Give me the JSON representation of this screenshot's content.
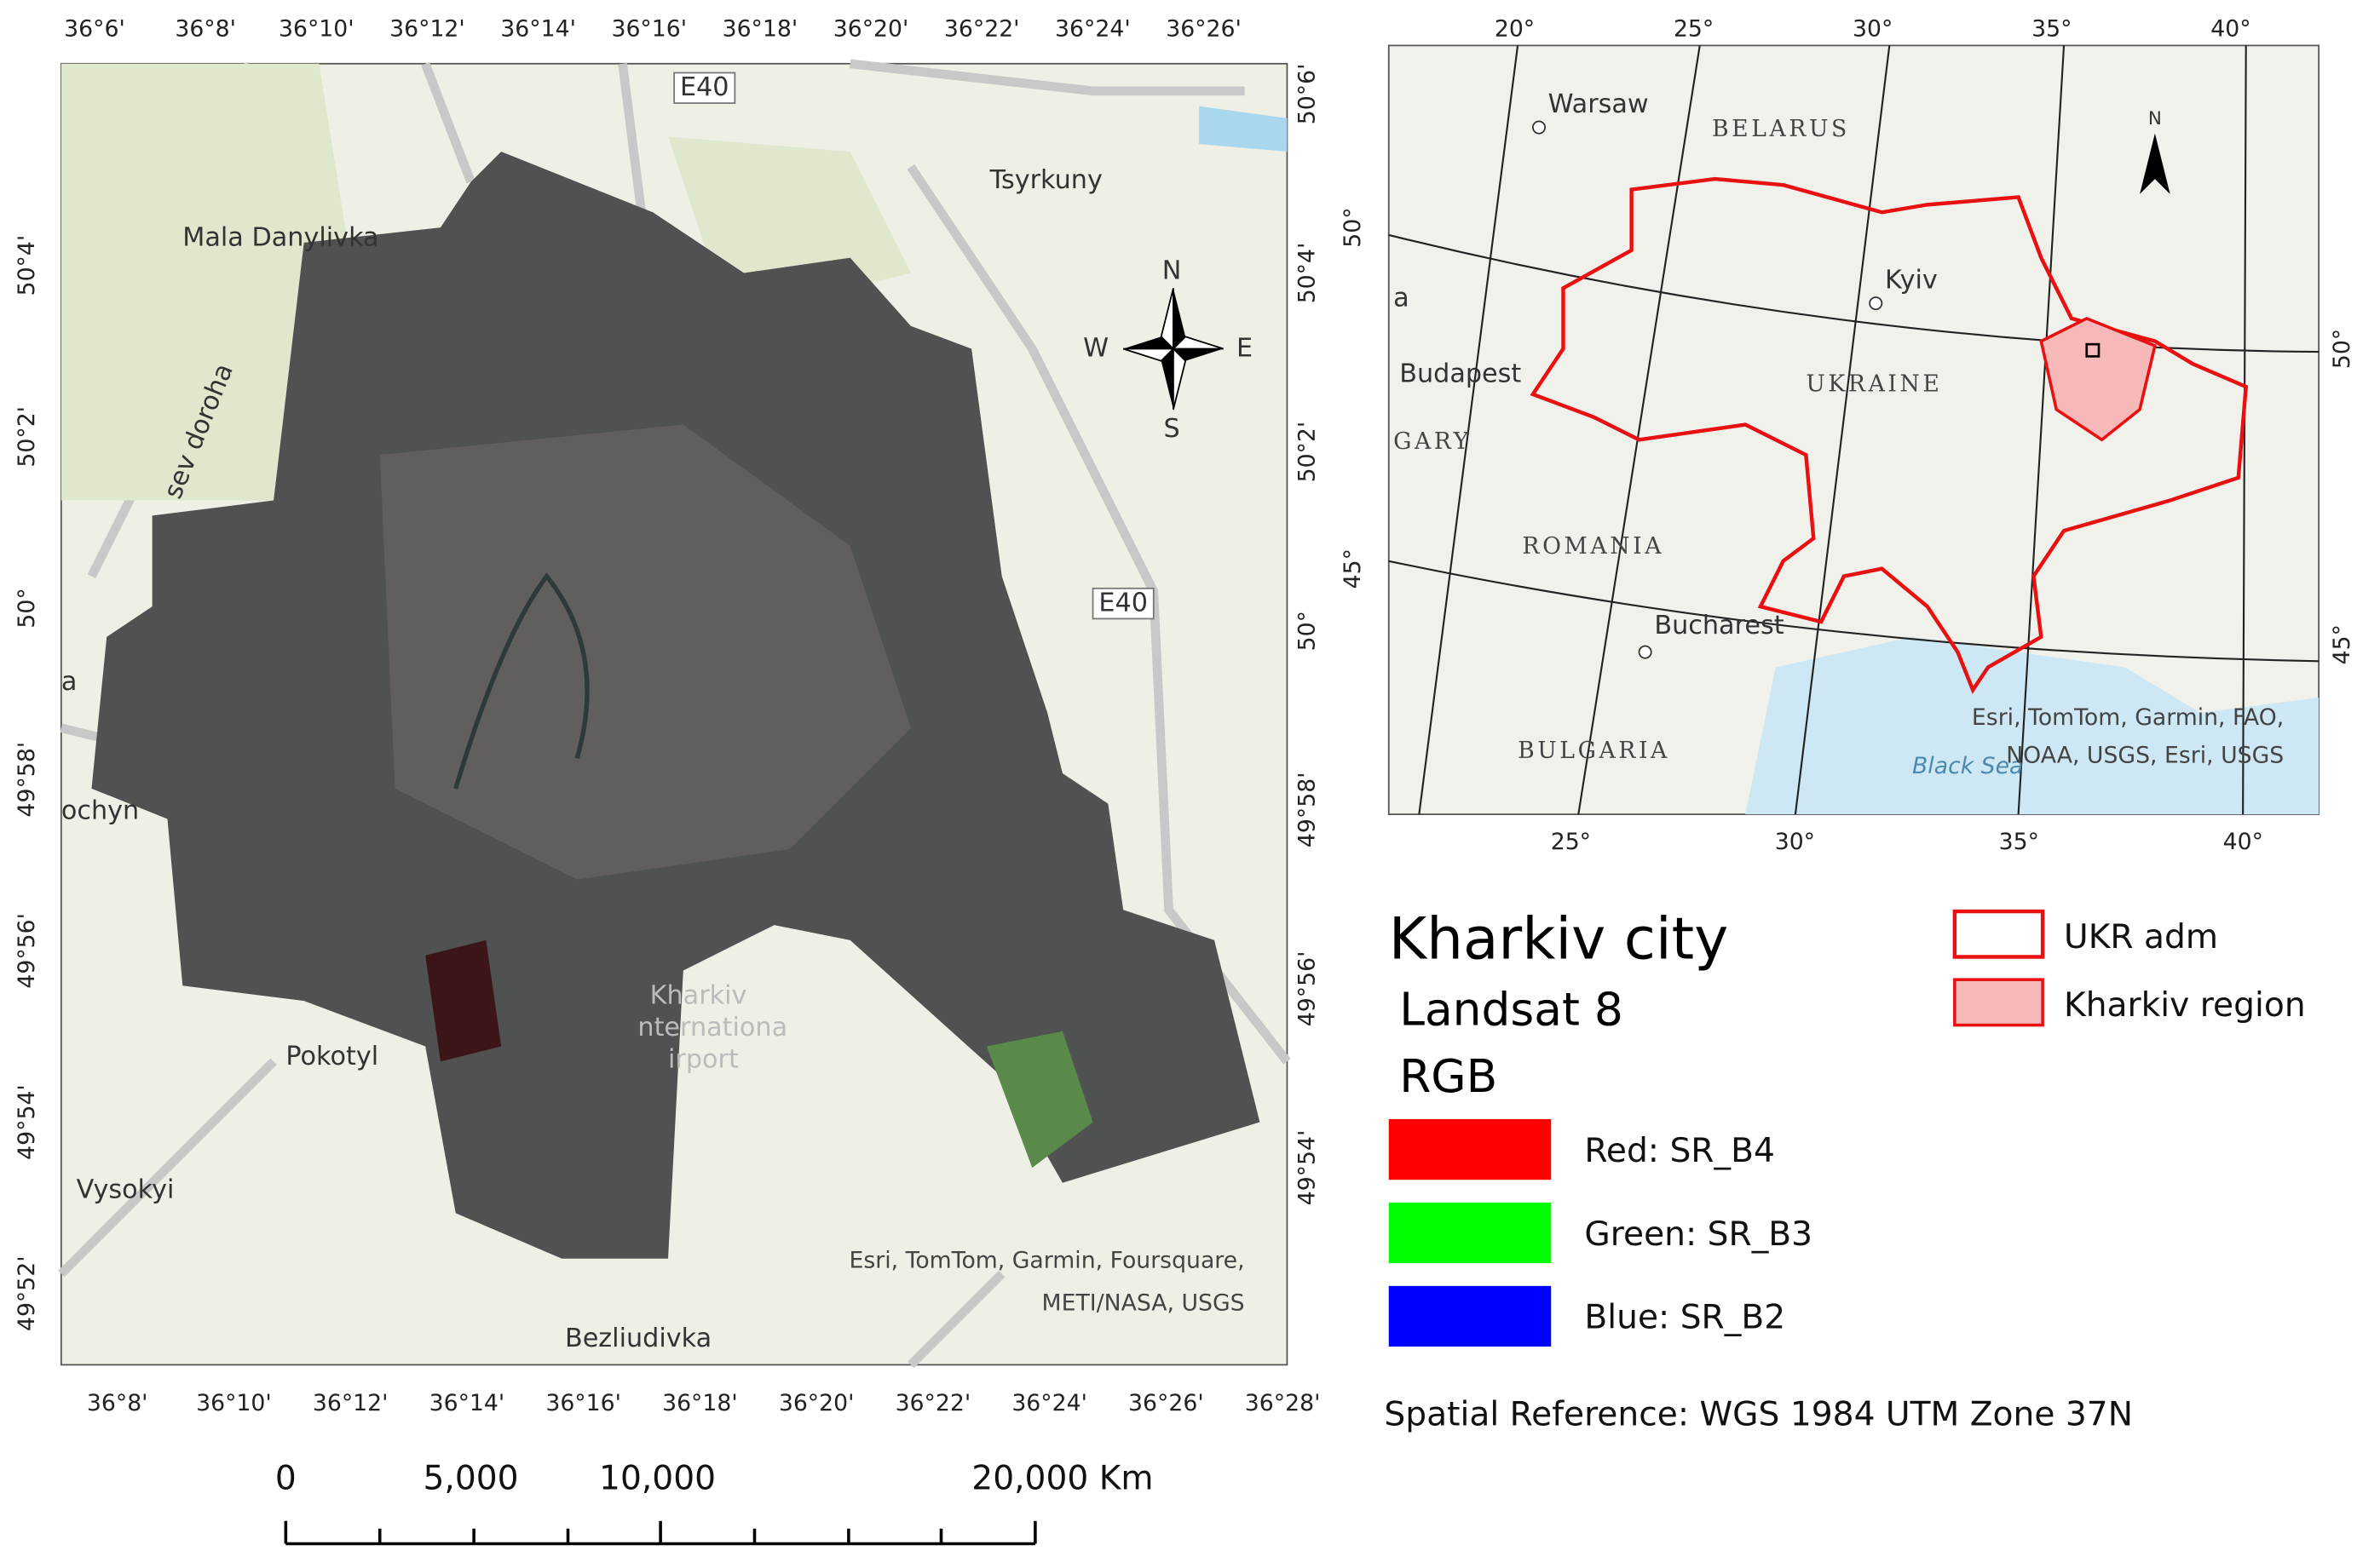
{
  "main_map": {
    "top_ticks": [
      "36°6'",
      "36°8'",
      "36°10'",
      "36°12'",
      "36°14'",
      "36°16'",
      "36°18'",
      "36°20'",
      "36°22'",
      "36°24'",
      "36°26'"
    ],
    "bottom_ticks": [
      "36°8'",
      "36°10'",
      "36°12'",
      "36°14'",
      "36°16'",
      "36°18'",
      "36°20'",
      "36°22'",
      "36°24'",
      "36°26'",
      "36°28'"
    ],
    "left_ticks": [
      "50°4'",
      "50°2'",
      "50°",
      "49°58'",
      "49°56'",
      "49°54'",
      "49°52'"
    ],
    "right_ticks": [
      "50°6'",
      "50°4'",
      "50°2'",
      "50°",
      "49°58'",
      "49°56'",
      "49°54'"
    ],
    "places": [
      "Mala Danylivka",
      "Tsyrkuny",
      "sev doroha",
      "a",
      "ochyn",
      "Kharkiv",
      "nternationa",
      "irport",
      "Pokotyl",
      "Vysokyi",
      "Bezliudivka"
    ],
    "roads": [
      "E40",
      "E40"
    ],
    "north_arrow": [
      "N",
      "W",
      "E",
      "S"
    ],
    "attribution": [
      "Esri, TomTom, Garmin, Foursquare,",
      "METI/NASA, USGS"
    ]
  },
  "inset_map": {
    "top_ticks": [
      "20°",
      "25°",
      "30°",
      "35°",
      "40°"
    ],
    "bottom_ticks": [
      "25°",
      "30°",
      "35°",
      "40°"
    ],
    "left_ticks": [
      "50°",
      "45°"
    ],
    "right_ticks": [
      "50°",
      "45°"
    ],
    "places": [
      "Warsaw",
      "BELARUS",
      "Kyiv",
      "UKRAINE",
      "a",
      "Budapest",
      "GARY",
      "ROMANIA",
      "Bucharest",
      "BULGARIA",
      "Black Sea"
    ],
    "north_arrow": "N",
    "attribution": [
      "Esri, TomTom, Garmin, FAO,",
      "NOAA, USGS, Esri, USGS"
    ]
  },
  "legend": {
    "title": "Kharkiv city",
    "subtitle": "Landsat 8",
    "composite": "RGB",
    "bands": [
      "Red: SR_B4",
      "Green: SR_B3",
      "Blue: SR_B2"
    ],
    "boundaries": [
      "UKR adm",
      "Kharkiv region"
    ]
  },
  "scale_bar": {
    "labels": [
      "0",
      "5,000",
      "10,000",
      "20,000 Km"
    ]
  },
  "spatial_reference": "Spatial Reference: WGS 1984 UTM Zone 37N"
}
